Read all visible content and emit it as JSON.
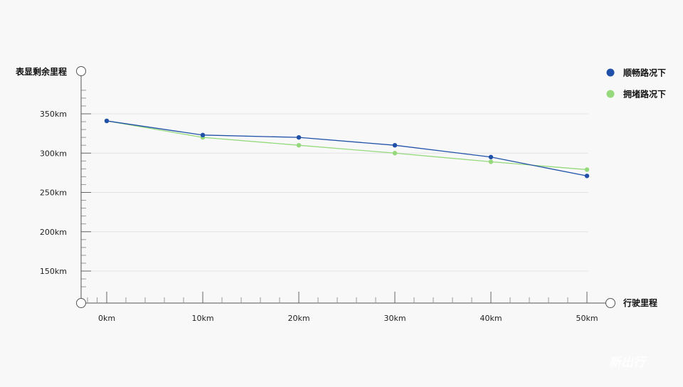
{
  "chart_data": {
    "type": "line",
    "ylabel": "表显剩余里程",
    "xlabel": "行驶里程",
    "x": [
      0,
      10,
      20,
      30,
      40,
      50
    ],
    "x_tick_labels": [
      "0km",
      "10km",
      "20km",
      "30km",
      "40km",
      "50km"
    ],
    "y_ticks": [
      150,
      200,
      250,
      300,
      350
    ],
    "y_tick_labels": [
      "150km",
      "200km",
      "250km",
      "300km",
      "350km"
    ],
    "xlim": [
      -2.7,
      52.5
    ],
    "ylim": [
      110,
      390
    ],
    "grid": true,
    "legend_position": "top-right",
    "series": [
      {
        "name": "顺畅路况下",
        "color": "#2050a8",
        "values": [
          341,
          323,
          320,
          310,
          295,
          271
        ]
      },
      {
        "name": "拥堵路况下",
        "color": "#95d97c",
        "values": [
          341,
          320,
          310,
          300,
          289,
          279
        ]
      }
    ]
  },
  "watermark": {
    "text": "新出行"
  }
}
